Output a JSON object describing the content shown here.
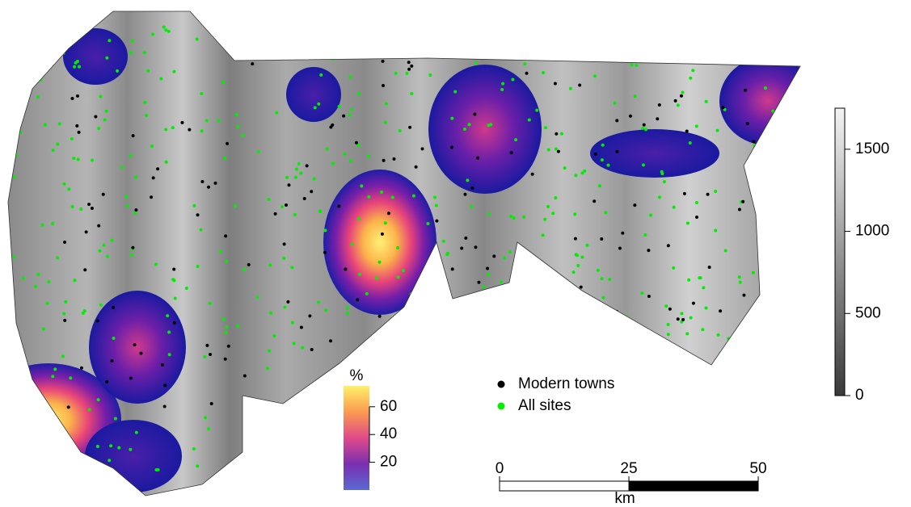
{
  "map": {
    "elevation_scale": {
      "lim": [
        0,
        1750
      ],
      "ticks": [
        0,
        500,
        1000,
        1500
      ]
    },
    "density_scale": {
      "title": "%",
      "lim": [
        0,
        75
      ],
      "ticks": [
        20,
        40,
        60
      ]
    },
    "legend": [
      {
        "label": "Modern towns",
        "color": "#000000"
      },
      {
        "label": "All sites",
        "color": "#00ee00"
      }
    ],
    "scale_bar": {
      "ticks": [
        0,
        25,
        50
      ],
      "unit": "km"
    }
  }
}
